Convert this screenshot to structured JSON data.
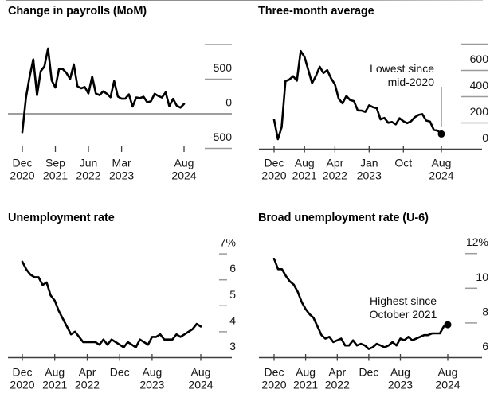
{
  "colors": {
    "line": "#000000",
    "tick": "#9b9b9b",
    "axis": "#3f3f3f",
    "text": "#111111",
    "pointer": "#888888",
    "background": "#ffffff"
  },
  "chart_data": [
    {
      "id": "payrolls_mom",
      "type": "line",
      "title": "Change in payrolls (MoM)",
      "x_start": "Dec 2020",
      "x_end": "Aug 2024",
      "frequency": "monthly",
      "ylim": [
        -500,
        1000
      ],
      "values": [
        -268,
        233,
        536,
        785,
        269,
        614,
        683,
        943,
        483,
        379,
        648,
        647,
        588,
        504,
        714,
        398,
        368,
        386,
        293,
        537,
        292,
        269,
        324,
        290,
        239,
        472,
        248,
        217,
        217,
        281,
        105,
        236,
        227,
        246,
        165,
        182,
        290,
        256,
        236,
        310,
        108,
        216,
        118,
        89,
        142
      ],
      "x_ticks": [
        {
          "m": 0,
          "labels": [
            "Dec",
            "2020"
          ]
        },
        {
          "m": 9,
          "labels": [
            "Sep",
            "2021"
          ]
        },
        {
          "m": 18,
          "labels": [
            "Jun",
            "2022"
          ]
        },
        {
          "m": 27,
          "labels": [
            "Mar",
            "2023"
          ]
        },
        {
          "m": 44,
          "labels": [
            "Aug",
            "2024"
          ]
        }
      ],
      "y_ticks": [
        {
          "v": 1000,
          "label": ""
        },
        {
          "v": 500,
          "label": "500"
        },
        {
          "v": 0,
          "label": "0"
        },
        {
          "v": -500,
          "label": "-500"
        }
      ]
    },
    {
      "id": "three_month_average",
      "type": "line",
      "title": "Three-month average",
      "x_start": "Dec 2020",
      "x_end": "Aug 2024",
      "frequency": "monthly",
      "ylim": [
        0,
        800
      ],
      "values": [
        225,
        76,
        167,
        518,
        530,
        556,
        522,
        747,
        703,
        602,
        503,
        558,
        628,
        580,
        602,
        539,
        493,
        384,
        349,
        405,
        374,
        366,
        295,
        294,
        284,
        334,
        320,
        312,
        227,
        238,
        201,
        207,
        189,
        236,
        213,
        198,
        212,
        243,
        261,
        267,
        218,
        211,
        147,
        141,
        116
      ],
      "end_dot": true,
      "annotation": {
        "lines": [
          "Lowest since",
          "mid-2020"
        ]
      },
      "x_ticks": [
        {
          "m": 0,
          "labels": [
            "Dec",
            "2020"
          ]
        },
        {
          "m": 8,
          "labels": [
            "Aug",
            "2021"
          ]
        },
        {
          "m": 16,
          "labels": [
            "Apr",
            "2022"
          ]
        },
        {
          "m": 25,
          "labels": [
            "Jan",
            "2023"
          ]
        },
        {
          "m": 34,
          "labels": [
            "Oct",
            ""
          ]
        },
        {
          "m": 44,
          "labels": [
            "Aug",
            "2024"
          ]
        }
      ],
      "y_ticks": [
        {
          "v": 800,
          "label": ""
        },
        {
          "v": 600,
          "label": "600"
        },
        {
          "v": 400,
          "label": "400"
        },
        {
          "v": 200,
          "label": "200"
        },
        {
          "v": 0,
          "label": "0"
        }
      ]
    },
    {
      "id": "unemployment_rate",
      "type": "line",
      "title": "Unemployment rate",
      "x_start": "Dec 2020",
      "x_end": "Aug 2024",
      "frequency": "monthly",
      "ylim": [
        3,
        7
      ],
      "values": [
        6.7,
        6.4,
        6.2,
        6.1,
        6.1,
        5.8,
        5.9,
        5.4,
        5.2,
        4.8,
        4.5,
        4.2,
        3.9,
        4.0,
        3.8,
        3.6,
        3.6,
        3.6,
        3.6,
        3.5,
        3.7,
        3.5,
        3.7,
        3.6,
        3.5,
        3.4,
        3.6,
        3.5,
        3.4,
        3.7,
        3.6,
        3.5,
        3.8,
        3.8,
        3.9,
        3.7,
        3.7,
        3.7,
        3.9,
        3.8,
        3.9,
        4.0,
        4.1,
        4.3,
        4.2
      ],
      "x_ticks": [
        {
          "m": 0,
          "labels": [
            "Dec",
            "2020"
          ]
        },
        {
          "m": 8,
          "labels": [
            "Aug",
            "2021"
          ]
        },
        {
          "m": 16,
          "labels": [
            "Apr",
            "2022"
          ]
        },
        {
          "m": 24,
          "labels": [
            "Dec",
            ""
          ]
        },
        {
          "m": 32,
          "labels": [
            "Aug",
            "2023"
          ]
        },
        {
          "m": 44,
          "labels": [
            "Aug",
            "2024"
          ]
        }
      ],
      "y_ticks": [
        {
          "v": 7,
          "label": "7%"
        },
        {
          "v": 6,
          "label": "6"
        },
        {
          "v": 5,
          "label": "5"
        },
        {
          "v": 4,
          "label": "4"
        },
        {
          "v": 3,
          "label": "3"
        }
      ]
    },
    {
      "id": "broad_unemployment_rate_u6",
      "type": "line",
      "title": "Broad unemployment rate (U-6)",
      "x_start": "Dec 2020",
      "x_end": "Aug 2024",
      "frequency": "monthly",
      "ylim": [
        6,
        12
      ],
      "values": [
        11.7,
        11.1,
        11.1,
        10.7,
        10.4,
        10.2,
        9.8,
        9.2,
        8.8,
        8.5,
        8.3,
        7.8,
        7.3,
        7.1,
        7.2,
        6.9,
        7.0,
        7.1,
        6.7,
        6.7,
        7.0,
        6.7,
        6.8,
        6.7,
        6.5,
        6.6,
        6.8,
        6.7,
        6.6,
        6.7,
        6.9,
        6.7,
        7.1,
        7.0,
        7.2,
        7.0,
        7.1,
        7.2,
        7.3,
        7.3,
        7.4,
        7.4,
        7.4,
        7.8,
        7.9
      ],
      "end_dot": true,
      "annotation": {
        "lines": [
          "Highest since",
          "October 2021"
        ]
      },
      "x_ticks": [
        {
          "m": 0,
          "labels": [
            "Dec",
            "2020"
          ]
        },
        {
          "m": 8,
          "labels": [
            "Aug",
            "2021"
          ]
        },
        {
          "m": 16,
          "labels": [
            "Apr",
            "2022"
          ]
        },
        {
          "m": 24,
          "labels": [
            "Dec",
            ""
          ]
        },
        {
          "m": 32,
          "labels": [
            "Aug",
            "2023"
          ]
        },
        {
          "m": 44,
          "labels": [
            "Aug",
            "2024"
          ]
        }
      ],
      "y_ticks": [
        {
          "v": 12,
          "label": "12%"
        },
        {
          "v": 10,
          "label": "10"
        },
        {
          "v": 8,
          "label": "8"
        },
        {
          "v": 6,
          "label": "6"
        }
      ]
    }
  ]
}
